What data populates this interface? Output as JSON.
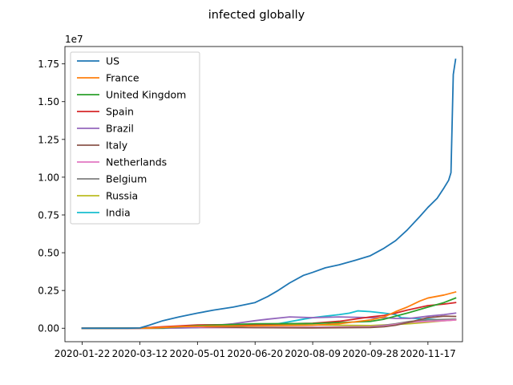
{
  "chart_data": {
    "type": "line",
    "title": "infected globally",
    "xlabel": "",
    "ylabel": "",
    "y_offset_label": "1e7",
    "y_scale": 10000000,
    "xlim": [
      "2020-01-07",
      "2020-12-17"
    ],
    "ylim": [
      -0.089,
      1.865
    ],
    "x_ticks": [
      "2020-01-22",
      "2020-03-12",
      "2020-05-01",
      "2020-06-20",
      "2020-08-09",
      "2020-09-28",
      "2020-11-17"
    ],
    "y_ticks": [
      0.0,
      0.25,
      0.5,
      0.75,
      1.0,
      1.25,
      1.5,
      1.75
    ],
    "y_tick_labels": [
      "0.00",
      "0.25",
      "0.50",
      "0.75",
      "1.00",
      "1.25",
      "1.50",
      "1.75"
    ],
    "legend_position": "upper-left",
    "grid": false,
    "series": [
      {
        "name": "US",
        "color": "#1f77b4",
        "x": [
          "2020-01-22",
          "2020-03-01",
          "2020-03-12",
          "2020-03-20",
          "2020-04-01",
          "2020-04-15",
          "2020-05-01",
          "2020-05-15",
          "2020-06-01",
          "2020-06-20",
          "2020-07-01",
          "2020-07-10",
          "2020-07-20",
          "2020-08-01",
          "2020-08-09",
          "2020-08-20",
          "2020-09-01",
          "2020-09-15",
          "2020-09-28",
          "2020-10-10",
          "2020-10-20",
          "2020-10-30",
          "2020-11-10",
          "2020-11-17",
          "2020-11-25",
          "2020-12-01",
          "2020-12-05",
          "2020-12-07",
          "2020-12-09",
          "2020-12-11"
        ],
        "y": [
          0,
          0.0001,
          0.002,
          0.02,
          0.05,
          0.075,
          0.1,
          0.12,
          0.14,
          0.17,
          0.21,
          0.25,
          0.3,
          0.35,
          0.37,
          0.4,
          0.42,
          0.45,
          0.48,
          0.53,
          0.58,
          0.65,
          0.74,
          0.8,
          0.86,
          0.93,
          0.98,
          1.03,
          1.68,
          1.78
        ]
      },
      {
        "name": "France",
        "color": "#ff7f0e",
        "x": [
          "2020-01-22",
          "2020-03-01",
          "2020-03-20",
          "2020-04-15",
          "2020-05-01",
          "2020-06-20",
          "2020-08-09",
          "2020-09-01",
          "2020-09-28",
          "2020-10-10",
          "2020-10-20",
          "2020-10-30",
          "2020-11-10",
          "2020-11-17",
          "2020-12-01",
          "2020-12-11"
        ],
        "y": [
          0,
          0.0001,
          0.001,
          0.011,
          0.013,
          0.016,
          0.02,
          0.03,
          0.055,
          0.075,
          0.11,
          0.14,
          0.18,
          0.2,
          0.22,
          0.24
        ]
      },
      {
        "name": "United Kingdom",
        "color": "#2ca02c",
        "x": [
          "2020-01-22",
          "2020-03-12",
          "2020-04-01",
          "2020-05-01",
          "2020-06-20",
          "2020-08-09",
          "2020-09-28",
          "2020-10-10",
          "2020-10-20",
          "2020-10-30",
          "2020-11-17",
          "2020-12-01",
          "2020-12-11"
        ],
        "y": [
          0,
          0.0005,
          0.003,
          0.017,
          0.03,
          0.031,
          0.045,
          0.06,
          0.08,
          0.1,
          0.14,
          0.17,
          0.2
        ]
      },
      {
        "name": "Spain",
        "color": "#d62728",
        "x": [
          "2020-01-22",
          "2020-03-12",
          "2020-04-01",
          "2020-05-01",
          "2020-06-20",
          "2020-08-09",
          "2020-09-01",
          "2020-09-28",
          "2020-10-10",
          "2020-10-20",
          "2020-10-30",
          "2020-11-17",
          "2020-12-01",
          "2020-12-11"
        ],
        "y": [
          0,
          0.0003,
          0.01,
          0.022,
          0.025,
          0.033,
          0.046,
          0.075,
          0.085,
          0.1,
          0.12,
          0.15,
          0.16,
          0.17
        ]
      },
      {
        "name": "Brazil",
        "color": "#9467bd",
        "x": [
          "2020-01-22",
          "2020-03-12",
          "2020-04-01",
          "2020-05-01",
          "2020-06-01",
          "2020-06-20",
          "2020-07-01",
          "2020-07-20",
          "2020-08-09",
          "2020-09-01",
          "2020-09-28",
          "2020-10-10",
          "2020-10-20",
          "2020-11-01",
          "2020-11-17",
          "2020-12-01",
          "2020-12-11"
        ],
        "y": [
          0,
          1e-05,
          0.0006,
          0.008,
          0.03,
          0.05,
          0.06,
          0.075,
          0.07,
          0.075,
          0.07,
          0.07,
          0.065,
          0.065,
          0.08,
          0.09,
          0.1
        ]
      },
      {
        "name": "Italy",
        "color": "#8c564b",
        "x": [
          "2020-01-22",
          "2020-03-01",
          "2020-03-12",
          "2020-04-01",
          "2020-05-01",
          "2020-06-20",
          "2020-08-09",
          "2020-09-28",
          "2020-10-10",
          "2020-10-20",
          "2020-11-01",
          "2020-11-17",
          "2020-12-01",
          "2020-12-11"
        ],
        "y": [
          0,
          0.0002,
          0.001,
          0.008,
          0.01,
          0.004,
          0.002,
          0.005,
          0.01,
          0.02,
          0.04,
          0.07,
          0.08,
          0.078
        ]
      },
      {
        "name": "Netherlands",
        "color": "#e377c2",
        "x": [
          "2020-01-22",
          "2020-03-12",
          "2020-04-01",
          "2020-05-01",
          "2020-06-20",
          "2020-08-09",
          "2020-09-28",
          "2020-10-10",
          "2020-10-20",
          "2020-11-01",
          "2020-11-17",
          "2020-12-01",
          "2020-12-11"
        ],
        "y": [
          0,
          5e-05,
          0.001,
          0.004,
          0.005,
          0.006,
          0.01,
          0.015,
          0.025,
          0.04,
          0.045,
          0.05,
          0.055
        ]
      },
      {
        "name": "Belgium",
        "color": "#7f7f7f",
        "x": [
          "2020-01-22",
          "2020-03-12",
          "2020-04-01",
          "2020-05-01",
          "2020-06-20",
          "2020-08-09",
          "2020-09-28",
          "2020-10-10",
          "2020-10-20",
          "2020-11-01",
          "2020-11-17",
          "2020-12-01",
          "2020-12-11"
        ],
        "y": [
          0,
          5e-05,
          0.001,
          0.004,
          0.005,
          0.007,
          0.01,
          0.02,
          0.03,
          0.045,
          0.055,
          0.058,
          0.06
        ]
      },
      {
        "name": "Russia",
        "color": "#bcbd22",
        "x": [
          "2020-01-22",
          "2020-03-12",
          "2020-04-01",
          "2020-05-01",
          "2020-06-20",
          "2020-08-09",
          "2020-09-28",
          "2020-10-10",
          "2020-10-20",
          "2020-11-01",
          "2020-11-17",
          "2020-12-01",
          "2020-12-11"
        ],
        "y": [
          0,
          2e-05,
          0.0003,
          0.008,
          0.022,
          0.022,
          0.018,
          0.022,
          0.025,
          0.03,
          0.04,
          0.05,
          0.055
        ]
      },
      {
        "name": "India",
        "color": "#17becf",
        "x": [
          "2020-01-22",
          "2020-03-12",
          "2020-04-01",
          "2020-05-01",
          "2020-06-01",
          "2020-06-20",
          "2020-07-10",
          "2020-08-01",
          "2020-08-09",
          "2020-08-20",
          "2020-09-01",
          "2020-09-10",
          "2020-09-17",
          "2020-09-28",
          "2020-10-10",
          "2020-10-20",
          "2020-10-25",
          "2020-11-17",
          "2020-12-01",
          "2020-12-11"
        ],
        "y": [
          0,
          1e-05,
          0.0002,
          0.003,
          0.01,
          0.02,
          0.03,
          0.06,
          0.07,
          0.08,
          0.09,
          0.1,
          0.115,
          0.11,
          0.1,
          0.09,
          0.07,
          0.06,
          0.055,
          0.06
        ]
      }
    ]
  }
}
